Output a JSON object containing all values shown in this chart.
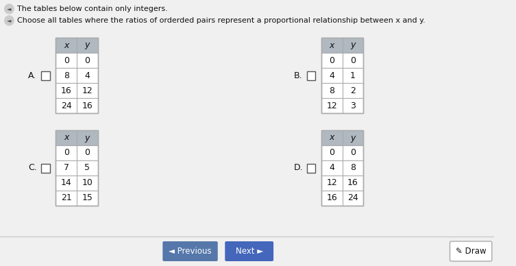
{
  "bg_color": "#e8e8e8",
  "page_bg": "#f0f0f0",
  "header1": "The tables below contain only integers.",
  "header2": "Choose all tables where the ratios of orderded pairs represent a proportional relationship between x and y.",
  "tables": {
    "A": {
      "label": "A.",
      "x": [
        0,
        8,
        16,
        24
      ],
      "y": [
        0,
        4,
        12,
        16
      ]
    },
    "B": {
      "label": "B.",
      "x": [
        0,
        4,
        8,
        12
      ],
      "y": [
        0,
        1,
        2,
        3
      ]
    },
    "C": {
      "label": "C.",
      "x": [
        0,
        7,
        14,
        21
      ],
      "y": [
        0,
        5,
        10,
        15
      ]
    },
    "D": {
      "label": "D.",
      "x": [
        0,
        4,
        12,
        16
      ],
      "y": [
        0,
        8,
        16,
        24
      ]
    }
  },
  "button_prev": "Previous",
  "button_next": "Next",
  "button_draw": "Draw",
  "table_header_bg": "#b0b8c0",
  "table_cell_bg": "#ffffff",
  "table_border": "#aaaaaa",
  "checkbox_color": "#ffffff",
  "checkbox_border": "#555555",
  "text_color": "#111111",
  "header_text_color": "#111111",
  "button_prev_bg": "#5577aa",
  "button_next_bg": "#4466bb",
  "button_draw_bg": "#ffffff",
  "speaker_icon_color": "#888888"
}
